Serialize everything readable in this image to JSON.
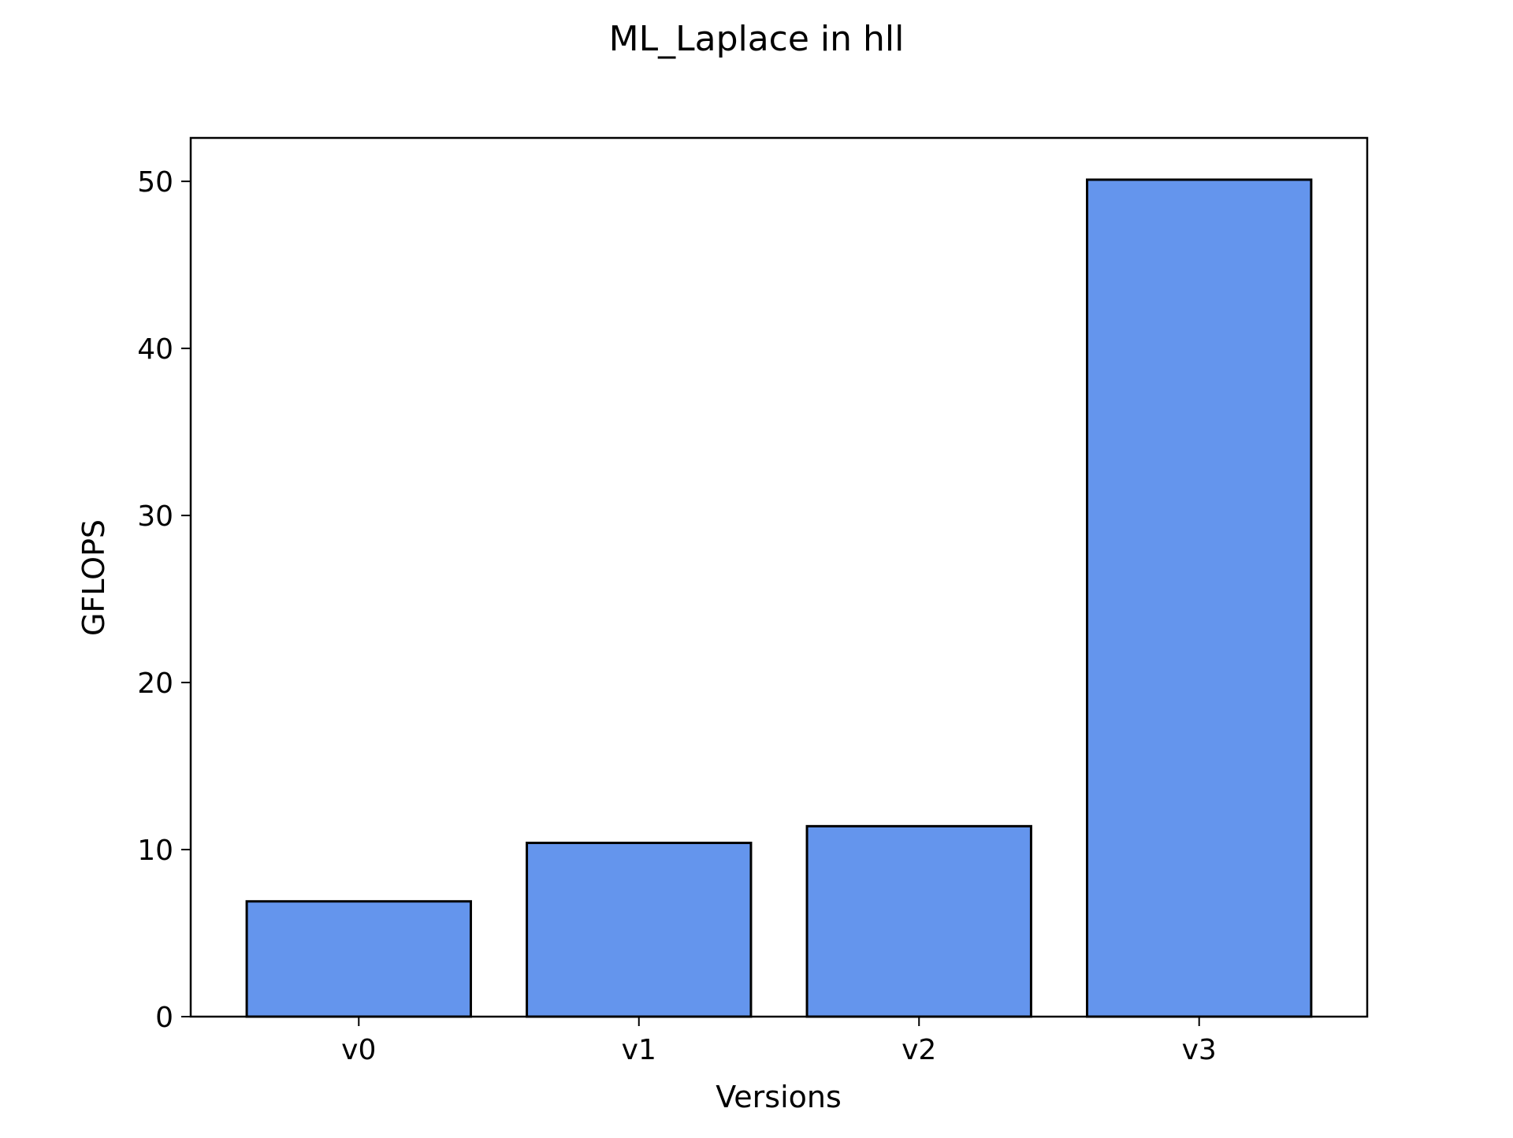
{
  "chart_data": {
    "type": "bar",
    "title": "ML_Laplace in hll",
    "xlabel": "Versions",
    "ylabel": "GFLOPS",
    "categories": [
      "v0",
      "v1",
      "v2",
      "v3"
    ],
    "values": [
      6.9,
      10.4,
      11.4,
      50.1
    ],
    "ylim": [
      0,
      52.6
    ],
    "yticks": [
      0,
      10,
      20,
      30,
      40,
      50
    ],
    "grid": false,
    "legend": "none",
    "colors": {
      "bar_fill": "#6495ED",
      "bar_edge": "#000000",
      "axes": "#000000",
      "background": "#ffffff"
    }
  }
}
